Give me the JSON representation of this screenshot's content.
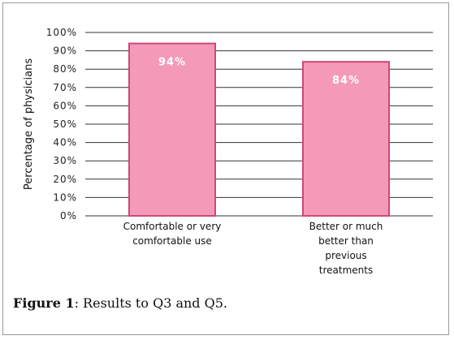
{
  "chart_data": {
    "type": "bar",
    "categories": [
      [
        "Comfortable or very",
        "comfortable use"
      ],
      [
        "Better or much",
        "better than",
        "previous",
        "treatments"
      ]
    ],
    "values": [
      94,
      84
    ],
    "data_labels": [
      "94%",
      "84%"
    ],
    "ylabel": "Percentage of physicians",
    "ylim": [
      0,
      100
    ],
    "yticks": [
      "0%",
      "10%",
      "20%",
      "30%",
      "40%",
      "50%",
      "60%",
      "70%",
      "80%",
      "90%",
      "100%"
    ],
    "grid": true,
    "colors": {
      "bar_fill": "#f49ab8",
      "bar_edge": "#d0457a",
      "grid": "#333333"
    }
  },
  "caption": {
    "label": "Figure 1",
    "text": ": Results to Q3 and Q5."
  }
}
